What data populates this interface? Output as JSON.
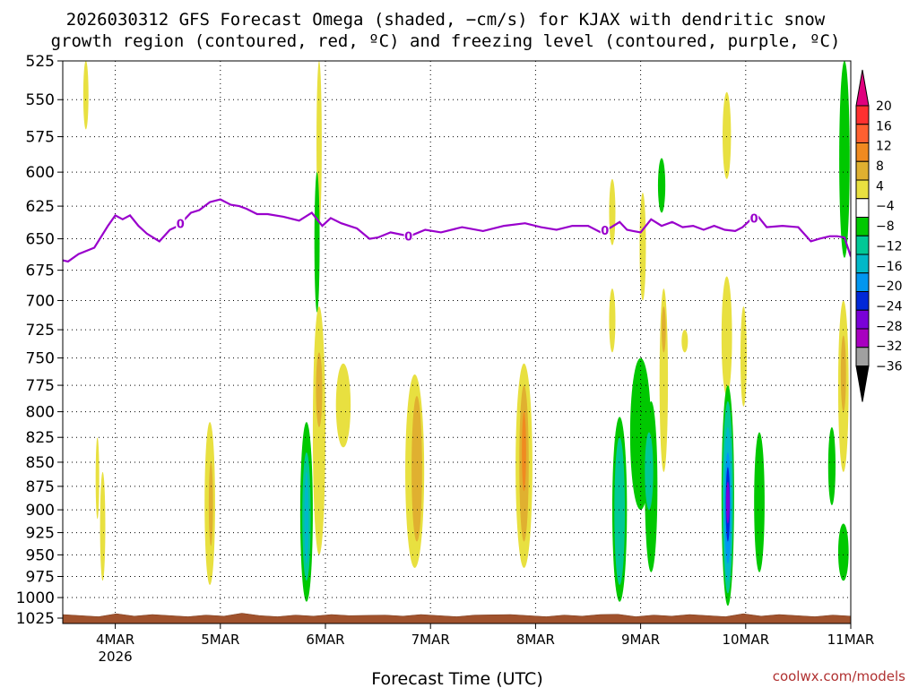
{
  "chart_data": {
    "type": "heatmap",
    "title_line1": "2026030312 GFS Forecast Omega (shaded, −cm/s) for KJAX with dendritic snow",
    "title_line2": "growth region (contoured, red, ºC) and freezing level (contoured, purple, ºC)",
    "xlabel": "Forecast Time (UTC)",
    "credit": "coolwx.com/models",
    "x_ticks": [
      {
        "day": 4,
        "label": "4MAR",
        "sub": "2026"
      },
      {
        "day": 5,
        "label": "5MAR",
        "sub": ""
      },
      {
        "day": 6,
        "label": "6MAR",
        "sub": ""
      },
      {
        "day": 7,
        "label": "7MAR",
        "sub": ""
      },
      {
        "day": 8,
        "label": "8MAR",
        "sub": ""
      },
      {
        "day": 9,
        "label": "9MAR",
        "sub": ""
      },
      {
        "day": 10,
        "label": "10MAR",
        "sub": ""
      },
      {
        "day": 11,
        "label": "11MAR",
        "sub": ""
      }
    ],
    "xlim": [
      3.5,
      11.0
    ],
    "y_ticks": [
      525,
      550,
      575,
      600,
      625,
      650,
      675,
      700,
      725,
      750,
      775,
      800,
      825,
      850,
      875,
      900,
      925,
      950,
      975,
      1000,
      1025
    ],
    "ylim": [
      525,
      1025
    ],
    "y_scale": "log-pressure",
    "grid": true,
    "colorbar": {
      "labels": [
        "20",
        "16",
        "12",
        "8",
        "4",
        "−4",
        "−8",
        "−12",
        "−16",
        "−20",
        "−24",
        "−28",
        "−32",
        "−36"
      ],
      "colors": [
        "#e0007e",
        "#ff3030",
        "#ff6030",
        "#f08a20",
        "#e0b030",
        "#e8e040",
        "#ffffff",
        "#00c800",
        "#00c896",
        "#00b8c8",
        "#0096f0",
        "#0028d8",
        "#7a00d8",
        "#a800c0",
        "#a0a0a0",
        "#000000"
      ]
    },
    "omega_levels": {
      "y1": "#e8e040",
      "y2": "#e0b030",
      "o1": "#f08a20",
      "g1": "#00c800",
      "t1": "#00c896",
      "c1": "#00b8c8",
      "b1": "#0096f0",
      "b2": "#0028d8",
      "v1": "#7a00d8"
    },
    "omega_regions": [
      {
        "level": "y1",
        "x": 3.72,
        "p_top": 525,
        "p_bot": 570,
        "w": 0.05
      },
      {
        "level": "y1",
        "x": 3.83,
        "p_top": 825,
        "p_bot": 910,
        "w": 0.03
      },
      {
        "level": "y1",
        "x": 3.88,
        "p_top": 860,
        "p_bot": 980,
        "w": 0.05
      },
      {
        "level": "y1",
        "x": 4.9,
        "p_top": 810,
        "p_bot": 985,
        "w": 0.1
      },
      {
        "level": "y2",
        "x": 4.91,
        "p_top": 850,
        "p_bot": 940,
        "w": 0.04
      },
      {
        "level": "y1",
        "x": 5.94,
        "p_top": 525,
        "p_bot": 640,
        "w": 0.05
      },
      {
        "level": "g1",
        "x": 5.92,
        "p_top": 600,
        "p_bot": 710,
        "w": 0.05
      },
      {
        "level": "y1",
        "x": 5.94,
        "p_top": 705,
        "p_bot": 950,
        "w": 0.12
      },
      {
        "level": "y2",
        "x": 5.94,
        "p_top": 745,
        "p_bot": 815,
        "w": 0.06
      },
      {
        "level": "g1",
        "x": 5.82,
        "p_top": 810,
        "p_bot": 1005,
        "w": 0.12
      },
      {
        "level": "t1",
        "x": 5.82,
        "p_top": 840,
        "p_bot": 980,
        "w": 0.08
      },
      {
        "level": "c1",
        "x": 5.82,
        "p_top": 860,
        "p_bot": 960,
        "w": 0.04
      },
      {
        "level": "y1",
        "x": 6.17,
        "p_top": 755,
        "p_bot": 835,
        "w": 0.14
      },
      {
        "level": "y1",
        "x": 6.85,
        "p_top": 765,
        "p_bot": 965,
        "w": 0.18
      },
      {
        "level": "y2",
        "x": 6.87,
        "p_top": 785,
        "p_bot": 935,
        "w": 0.1
      },
      {
        "level": "y1",
        "x": 7.89,
        "p_top": 755,
        "p_bot": 965,
        "w": 0.16
      },
      {
        "level": "y2",
        "x": 7.89,
        "p_top": 775,
        "p_bot": 935,
        "w": 0.09
      },
      {
        "level": "o1",
        "x": 7.89,
        "p_top": 800,
        "p_bot": 880,
        "w": 0.04
      },
      {
        "level": "y1",
        "x": 8.73,
        "p_top": 605,
        "p_bot": 655,
        "w": 0.06
      },
      {
        "level": "y1",
        "x": 8.73,
        "p_top": 690,
        "p_bot": 745,
        "w": 0.06
      },
      {
        "level": "y1",
        "x": 9.02,
        "p_top": 615,
        "p_bot": 700,
        "w": 0.06
      },
      {
        "level": "y1",
        "x": 9.22,
        "p_top": 690,
        "p_bot": 860,
        "w": 0.08
      },
      {
        "level": "y2",
        "x": 9.22,
        "p_top": 705,
        "p_bot": 745,
        "w": 0.04
      },
      {
        "level": "g1",
        "x": 9.2,
        "p_top": 590,
        "p_bot": 630,
        "w": 0.07
      },
      {
        "level": "y1",
        "x": 9.42,
        "p_top": 725,
        "p_bot": 745,
        "w": 0.06
      },
      {
        "level": "g1",
        "x": 8.8,
        "p_top": 805,
        "p_bot": 1005,
        "w": 0.14
      },
      {
        "level": "t1",
        "x": 8.8,
        "p_top": 825,
        "p_bot": 985,
        "w": 0.1
      },
      {
        "level": "g1",
        "x": 9.0,
        "p_top": 750,
        "p_bot": 900,
        "w": 0.2
      },
      {
        "level": "g1",
        "x": 9.1,
        "p_top": 790,
        "p_bot": 970,
        "w": 0.12
      },
      {
        "level": "t1",
        "x": 9.08,
        "p_top": 820,
        "p_bot": 900,
        "w": 0.08
      },
      {
        "level": "y1",
        "x": 9.82,
        "p_top": 545,
        "p_bot": 605,
        "w": 0.08
      },
      {
        "level": "y1",
        "x": 9.82,
        "p_top": 680,
        "p_bot": 785,
        "w": 0.1
      },
      {
        "level": "y1",
        "x": 9.98,
        "p_top": 705,
        "p_bot": 795,
        "w": 0.06
      },
      {
        "level": "g1",
        "x": 9.83,
        "p_top": 775,
        "p_bot": 1010,
        "w": 0.12
      },
      {
        "level": "t1",
        "x": 9.83,
        "p_top": 790,
        "p_bot": 995,
        "w": 0.1
      },
      {
        "level": "c1",
        "x": 9.83,
        "p_top": 815,
        "p_bot": 980,
        "w": 0.08
      },
      {
        "level": "b1",
        "x": 9.83,
        "p_top": 840,
        "p_bot": 960,
        "w": 0.06
      },
      {
        "level": "b2",
        "x": 9.83,
        "p_top": 855,
        "p_bot": 935,
        "w": 0.04
      },
      {
        "level": "v1",
        "x": 9.83,
        "p_top": 870,
        "p_bot": 915,
        "w": 0.02
      },
      {
        "level": "g1",
        "x": 10.13,
        "p_top": 820,
        "p_bot": 970,
        "w": 0.1
      },
      {
        "level": "g1",
        "x": 10.82,
        "p_top": 815,
        "p_bot": 895,
        "w": 0.07
      },
      {
        "level": "g1",
        "x": 10.94,
        "p_top": 525,
        "p_bot": 665,
        "w": 0.1
      },
      {
        "level": "y1",
        "x": 10.93,
        "p_top": 700,
        "p_bot": 860,
        "w": 0.1
      },
      {
        "level": "y2",
        "x": 10.93,
        "p_top": 730,
        "p_bot": 800,
        "w": 0.05
      },
      {
        "level": "g1",
        "x": 10.93,
        "p_top": 915,
        "p_bot": 980,
        "w": 0.1
      }
    ],
    "freezing_level": {
      "label": "0",
      "label_positions": [
        4.62,
        6.79,
        8.66,
        10.08
      ],
      "x": [
        3.5,
        3.55,
        3.65,
        3.8,
        3.93,
        4.0,
        4.07,
        4.14,
        4.22,
        4.3,
        4.42,
        4.52,
        4.6,
        4.72,
        4.8,
        4.9,
        5.0,
        5.1,
        5.18,
        5.25,
        5.35,
        5.45,
        5.6,
        5.75,
        5.87,
        5.97,
        6.05,
        6.15,
        6.3,
        6.42,
        6.5,
        6.62,
        6.8,
        6.95,
        7.1,
        7.3,
        7.5,
        7.7,
        7.9,
        8.05,
        8.2,
        8.35,
        8.5,
        8.62,
        8.72,
        8.8,
        8.87,
        8.93,
        9.0,
        9.1,
        9.2,
        9.3,
        9.4,
        9.5,
        9.6,
        9.7,
        9.8,
        9.9,
        9.97,
        10.05,
        10.12,
        10.2,
        10.35,
        10.5,
        10.62,
        10.7,
        10.8,
        10.87,
        10.94,
        11.0
      ],
      "p": [
        667,
        668,
        662,
        657,
        640,
        632,
        635,
        632,
        640,
        646,
        652,
        643,
        640,
        630,
        628,
        622,
        620,
        624,
        625,
        627,
        631,
        631,
        633,
        636,
        630,
        640,
        634,
        638,
        642,
        650,
        649,
        645,
        648,
        643,
        645,
        641,
        644,
        640,
        638,
        641,
        643,
        640,
        640,
        645,
        641,
        637,
        643,
        644,
        645,
        635,
        640,
        637,
        641,
        640,
        643,
        640,
        643,
        644,
        641,
        635,
        633,
        641,
        640,
        641,
        652,
        650,
        648,
        648,
        649,
        664
      ]
    }
  }
}
